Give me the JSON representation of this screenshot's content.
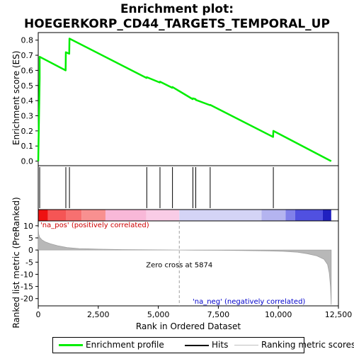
{
  "title_line1": "Enrichment plot:",
  "title_line2": "HOEGERKORP_CD44_TARGETS_TEMPORAL_UP",
  "chart_data": {
    "type": "line",
    "top_panel": {
      "ylabel": "Enrichment score (ES)",
      "ylim": [
        -0.03,
        0.85
      ],
      "yticks": [
        "0.0",
        "0.1",
        "0.2",
        "0.3",
        "0.4",
        "0.5",
        "0.6",
        "0.7",
        "0.8"
      ],
      "series": [
        {
          "name": "Enrichment profile",
          "color": "#00ee00",
          "x": [
            0,
            59,
            60,
            1140,
            1150,
            1290,
            1300,
            4510,
            4520,
            5060,
            5070,
            5580,
            5590,
            6430,
            6440,
            6550,
            6560,
            7150,
            7160,
            9780,
            9790,
            12200
          ],
          "y": [
            0.0,
            0.55,
            0.69,
            0.6,
            0.72,
            0.71,
            0.81,
            0.55,
            0.555,
            0.52,
            0.525,
            0.485,
            0.49,
            0.41,
            0.415,
            0.41,
            0.405,
            0.37,
            0.372,
            0.16,
            0.2,
            0.0
          ]
        }
      ]
    },
    "hits": {
      "name": "Hits",
      "x": [
        60,
        1150,
        1300,
        4520,
        5070,
        5590,
        6440,
        6560,
        7160,
        9790
      ]
    },
    "bottom_panel": {
      "ylabel": "Ranked list metric (PreRanked)",
      "xlabel": "Rank in Ordered Dataset",
      "ylim": [
        -23,
        12
      ],
      "yticks": [
        "10",
        "5",
        "0",
        "-5",
        "-10",
        "-15",
        "-20"
      ],
      "xlim": [
        0,
        12500
      ],
      "xticks": [
        "0",
        "2,500",
        "5,000",
        "7,500",
        "10,000",
        "12,500"
      ],
      "series": [
        {
          "name": "Ranking metric scores",
          "x": [
            0,
            20,
            60,
            150,
            300,
            500,
            800,
            1200,
            1700,
            2500,
            3500,
            4500,
            5500,
            5874,
            6500,
            7500,
            8500,
            9500,
            10200,
            10800,
            11200,
            11600,
            11900,
            12050,
            12120,
            12170,
            12200
          ],
          "y": [
            9.5,
            6.5,
            5.2,
            4.2,
            3.3,
            2.6,
            1.8,
            1.0,
            0.6,
            0.35,
            0.2,
            0.1,
            0.03,
            0.0,
            -0.05,
            -0.1,
            -0.2,
            -0.35,
            -0.55,
            -0.9,
            -1.5,
            -2.4,
            -3.8,
            -6.0,
            -9.5,
            -15.0,
            -22.5
          ]
        }
      ],
      "zero_cross_label": "Zero cross at 5874",
      "zero_cross": 5874,
      "pos_label": "'na_pos' (positively correlated)",
      "neg_label": "'na_neg' (negatively correlated)",
      "pos_color": "#cc0000",
      "neg_color": "#0000cc"
    },
    "heat_bar": {
      "segments": [
        {
          "x0": 0,
          "x1": 400,
          "color": "#ee1111"
        },
        {
          "x0": 400,
          "x1": 1150,
          "color": "#f55555"
        },
        {
          "x0": 1150,
          "x1": 1800,
          "color": "#f77070"
        },
        {
          "x0": 1800,
          "x1": 2800,
          "color": "#f89090"
        },
        {
          "x0": 2800,
          "x1": 4500,
          "color": "#f8b8d8"
        },
        {
          "x0": 4500,
          "x1": 5874,
          "color": "#f9cce6"
        },
        {
          "x0": 5874,
          "x1": 9300,
          "color": "#d4d4f6"
        },
        {
          "x0": 9300,
          "x1": 10300,
          "color": "#b4b4f0"
        },
        {
          "x0": 10300,
          "x1": 10700,
          "color": "#8080ea"
        },
        {
          "x0": 10700,
          "x1": 11850,
          "color": "#5050e0"
        },
        {
          "x0": 11850,
          "x1": 12200,
          "color": "#2020c0"
        }
      ]
    },
    "legend": [
      "Enrichment profile",
      "Hits",
      "Ranking metric scores"
    ],
    "grid": false
  }
}
